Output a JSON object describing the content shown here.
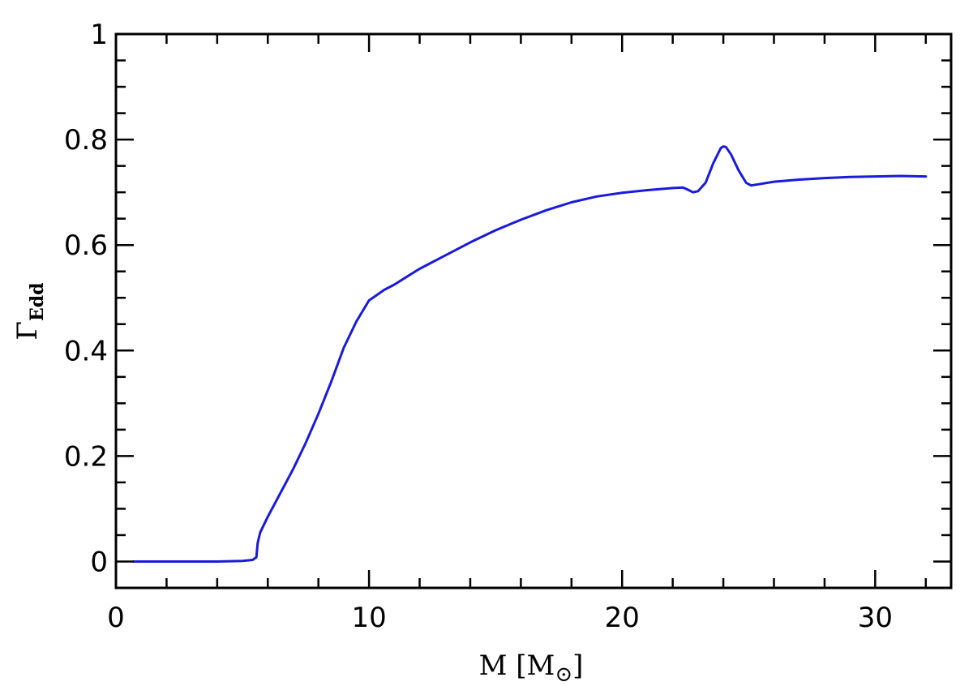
{
  "chart_data": {
    "type": "line",
    "title": "",
    "xlabel": "M [M⊙]",
    "xlabel_main": "M [M",
    "xlabel_sub": "⊙",
    "xlabel_close": "]",
    "ylabel": "ΓEdd",
    "ylabel_main": "Γ",
    "ylabel_sub": "Edd",
    "xlim": [
      0,
      33
    ],
    "ylim": [
      -0.05,
      1.0
    ],
    "x_major_ticks": [
      0,
      10,
      20,
      30
    ],
    "x_tick_labels": [
      "0",
      "10",
      "20",
      "30"
    ],
    "x_minor_step": 2,
    "y_major_ticks": [
      0,
      0.2,
      0.4,
      0.6,
      0.8,
      1
    ],
    "y_tick_labels": [
      "0",
      "0.2",
      "0.4",
      "0.6",
      "0.8",
      "1"
    ],
    "y_minor_step": 0.05,
    "grid": false,
    "series": [
      {
        "color": "#1a1adc",
        "x": [
          0.7,
          2.0,
          4.0,
          5.0,
          5.4,
          5.55,
          5.6,
          5.7,
          5.8,
          6.0,
          6.5,
          7.0,
          7.5,
          8.0,
          8.5,
          9.0,
          9.5,
          10.0,
          10.3,
          10.6,
          11.0,
          11.5,
          12.0,
          13.0,
          14.0,
          15.0,
          16.0,
          17.0,
          18.0,
          19.0,
          20.0,
          21.0,
          22.0,
          22.4,
          22.6,
          22.8,
          23.0,
          23.3,
          23.6,
          23.9,
          24.0,
          24.1,
          24.3,
          24.6,
          24.9,
          25.1,
          25.5,
          26.0,
          27.0,
          28.0,
          29.0,
          30.0,
          31.0,
          32.0
        ],
        "y": [
          0.0,
          0.0,
          0.0,
          0.001,
          0.003,
          0.008,
          0.035,
          0.055,
          0.065,
          0.085,
          0.13,
          0.175,
          0.225,
          0.28,
          0.34,
          0.405,
          0.455,
          0.495,
          0.505,
          0.515,
          0.525,
          0.54,
          0.555,
          0.58,
          0.605,
          0.628,
          0.648,
          0.666,
          0.681,
          0.692,
          0.699,
          0.704,
          0.708,
          0.709,
          0.705,
          0.7,
          0.702,
          0.718,
          0.755,
          0.784,
          0.787,
          0.786,
          0.772,
          0.742,
          0.718,
          0.713,
          0.716,
          0.72,
          0.724,
          0.727,
          0.729,
          0.73,
          0.731,
          0.73
        ]
      }
    ]
  }
}
